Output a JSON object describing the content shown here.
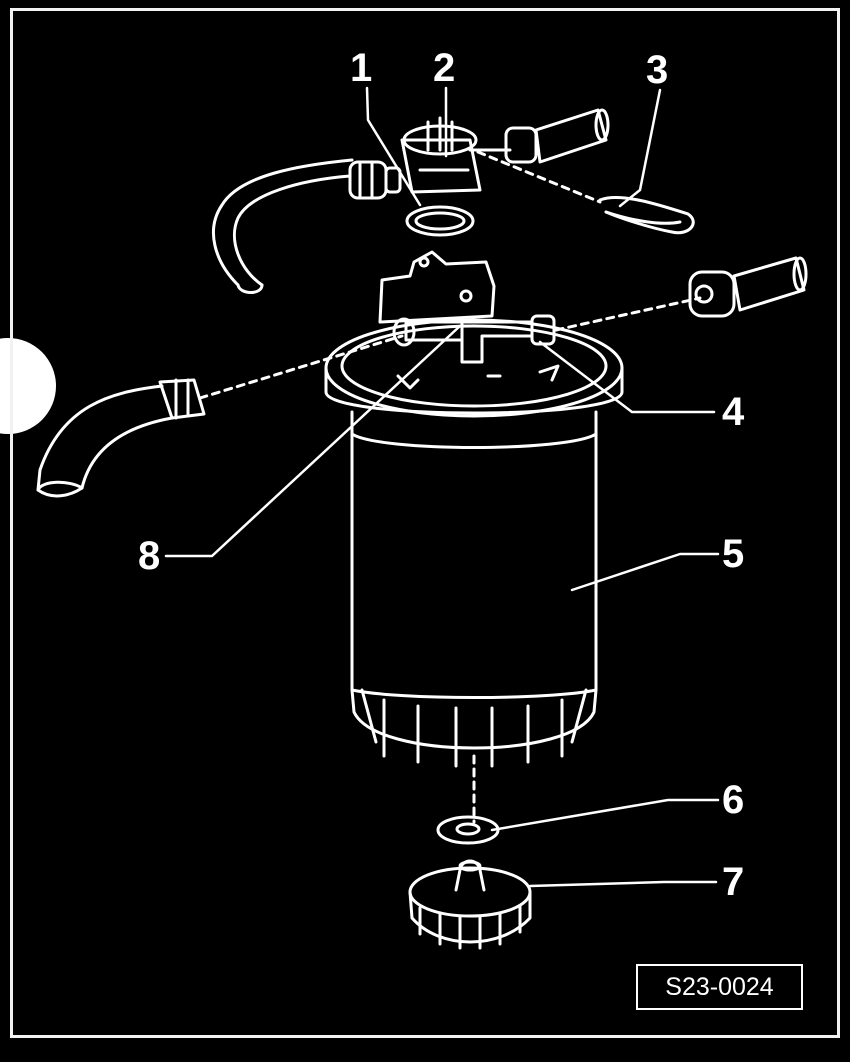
{
  "callouts": {
    "c1": "1",
    "c2": "2",
    "c3": "3",
    "c4": "4",
    "c5": "5",
    "c6": "6",
    "c7": "7",
    "c8": "8"
  },
  "figure_ref": "S23-0024",
  "colors": {
    "background": "#000000",
    "line": "#ffffff"
  },
  "parts": [
    "hose-upper-left-icon",
    "connector-block-icon",
    "clip-icon",
    "o-ring-icon",
    "valve-bracket-icon",
    "hose-upper-right-icon",
    "hose-lower-left-icon",
    "fuel-filter-icon",
    "seal-washer-icon",
    "drain-cap-icon"
  ]
}
